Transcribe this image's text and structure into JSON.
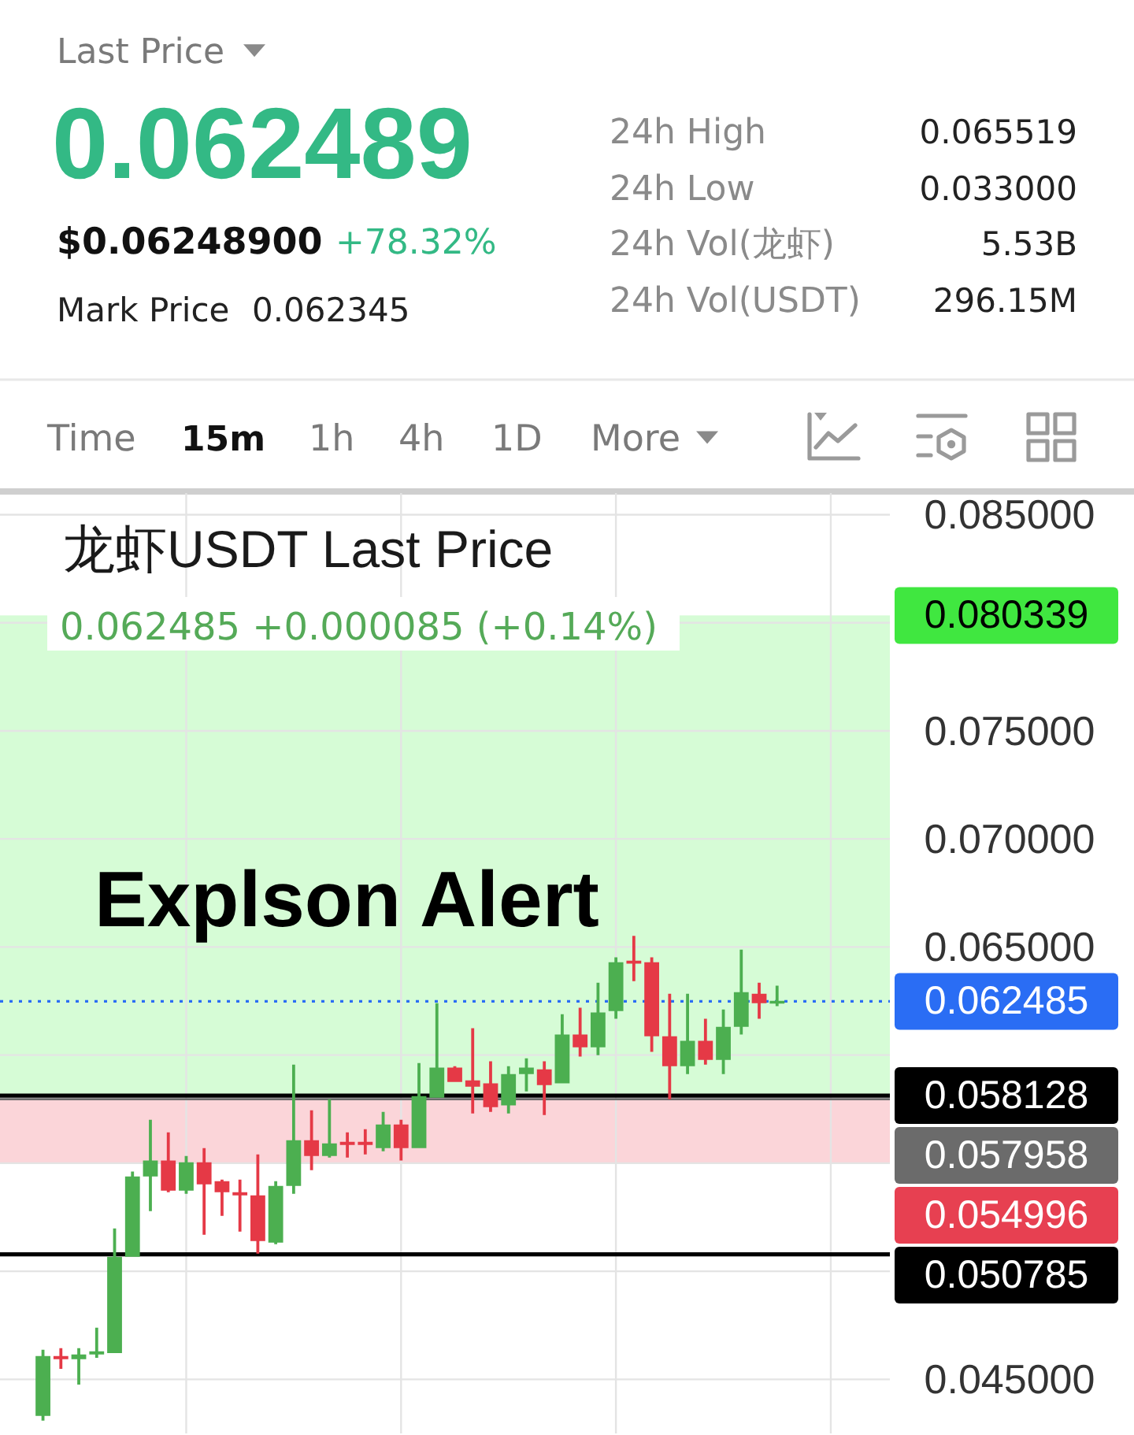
{
  "chart_data": [
    {
      "type": "other",
      "annotations": [
        "Last Price",
        "0.062489",
        "$0.06248900",
        "+78.32%",
        "Mark Price",
        "0.062345",
        "24h High",
        "0.065519",
        "24h Low",
        "0.033000",
        "24h Vol(龙虾)",
        "5.53B",
        "24h Vol(USDT)",
        "296.15M",
        "Time",
        "15m",
        "1h",
        "4h",
        "1D",
        "More"
      ]
    },
    {
      "type": "candlestick",
      "title": "龙虾USDT Last Price",
      "subtitle": "0.062485 +0.000085 (+0.14%)",
      "categories": [
        null,
        null,
        null,
        null,
        null,
        null,
        null,
        null,
        null,
        null,
        null,
        null,
        null,
        null,
        null,
        null,
        null,
        null,
        null,
        null,
        null,
        null,
        null,
        null,
        null,
        null,
        null,
        null,
        null,
        null,
        null,
        null,
        null,
        null,
        null,
        null,
        null,
        null,
        null,
        null,
        null,
        null
      ],
      "ohlc": [
        [
          0.04331,
          0.04637,
          0.04309,
          0.04608
        ],
        [
          0.04608,
          0.04644,
          0.04549,
          0.04593
        ],
        [
          0.04593,
          0.04644,
          0.04476,
          0.04615
        ],
        [
          0.04615,
          0.04739,
          0.046,
          0.0463
        ],
        [
          0.04622,
          0.05198,
          0.04622,
          0.05067
        ],
        [
          0.05067,
          0.05461,
          0.05067,
          0.05439
        ],
        [
          0.05439,
          0.05701,
          0.05278,
          0.05512
        ],
        [
          0.05512,
          0.05643,
          0.05366,
          0.05373
        ],
        [
          0.05373,
          0.05533,
          0.05358,
          0.05504
        ],
        [
          0.05504,
          0.0557,
          0.05169,
          0.05402
        ],
        [
          0.05417,
          0.05424,
          0.05256,
          0.05366
        ],
        [
          0.05366,
          0.05424,
          0.05184,
          0.05351
        ],
        [
          0.05351,
          0.05541,
          0.05082,
          0.0514
        ],
        [
          0.05133,
          0.05417,
          0.05125,
          0.05395
        ],
        [
          0.05395,
          0.05956,
          0.05358,
          0.05606
        ],
        [
          0.05606,
          0.05745,
          0.05468,
          0.05533
        ],
        [
          0.05533,
          0.05796,
          0.05526,
          0.05592
        ],
        [
          0.05599,
          0.05643,
          0.05526,
          0.05584
        ],
        [
          0.05599,
          0.05657,
          0.05541,
          0.05584
        ],
        [
          0.0557,
          0.05737,
          0.05555,
          0.05679
        ],
        [
          0.05679,
          0.05701,
          0.05512,
          0.0557
        ],
        [
          0.0557,
          0.05963,
          0.0557,
          0.0581
        ],
        [
          0.05803,
          0.0624,
          0.05803,
          0.05942
        ],
        [
          0.05942,
          0.05949,
          0.05876,
          0.05876
        ],
        [
          0.05883,
          0.06124,
          0.0573,
          0.05854
        ],
        [
          0.05869,
          0.05971,
          0.05737,
          0.05759
        ],
        [
          0.05767,
          0.05949,
          0.0573,
          0.05912
        ],
        [
          0.05912,
          0.05985,
          0.05832,
          0.05942
        ],
        [
          0.05934,
          0.05971,
          0.05723,
          0.05861
        ],
        [
          0.05869,
          0.06189,
          0.05869,
          0.06095
        ],
        [
          0.06095,
          0.06219,
          0.05993,
          0.06036
        ],
        [
          0.06036,
          0.06335,
          0.06,
          0.06197
        ],
        [
          0.06204,
          0.06452,
          0.06168,
          0.0643
        ],
        [
          0.06437,
          0.06552,
          0.06342,
          0.06423
        ],
        [
          0.0643,
          0.06452,
          0.06015,
          0.06087
        ],
        [
          0.06087,
          0.06284,
          0.05796,
          0.05949
        ],
        [
          0.05949,
          0.06284,
          0.05912,
          0.06066
        ],
        [
          0.06066,
          0.06168,
          0.05956,
          0.05978
        ],
        [
          0.05978,
          0.06211,
          0.05912,
          0.06131
        ],
        [
          0.06131,
          0.06488,
          0.06095,
          0.06291
        ],
        [
          0.06284,
          0.06335,
          0.06168,
          0.0624
        ],
        [
          0.0624,
          0.06321,
          0.06226,
          0.06249
        ]
      ],
      "colors": [
        "#4caf50",
        "#e53946",
        "#4caf50",
        "#4caf50",
        "#4caf50",
        "#4caf50",
        "#4caf50",
        "#e53946",
        "#4caf50",
        "#e53946",
        "#e53946",
        "#e53946",
        "#e53946",
        "#4caf50",
        "#4caf50",
        "#e53946",
        "#4caf50",
        "#e53946",
        "#e53946",
        "#4caf50",
        "#e53946",
        "#4caf50",
        "#4caf50",
        "#e53946",
        "#e53946",
        "#e53946",
        "#4caf50",
        "#4caf50",
        "#e53946",
        "#4caf50",
        "#e53946",
        "#4caf50",
        "#4caf50",
        "#e53946",
        "#e53946",
        "#e53946",
        "#4caf50",
        "#e53946",
        "#4caf50",
        "#4caf50",
        "#e53946",
        "#4caf50"
      ],
      "ylim": [
        0.0425,
        0.086
      ],
      "yticks": [
        {
          "value": 0.045,
          "label": "0.045000"
        },
        {
          "value": 0.05,
          "label": null
        },
        {
          "value": 0.055,
          "label": null
        },
        {
          "value": 0.06,
          "label": null
        },
        {
          "value": 0.065,
          "label": "0.065000"
        },
        {
          "value": 0.07,
          "label": "0.070000"
        },
        {
          "value": 0.075,
          "label": "0.075000"
        },
        {
          "value": 0.08,
          "label": null
        },
        {
          "value": 0.085,
          "label": "0.085000"
        }
      ],
      "grid": true,
      "bands": [
        {
          "axis": "y",
          "from": 0.058128,
          "to": 0.080339,
          "label": "0.080339",
          "color": "#d6fcd6"
        },
        {
          "axis": "y",
          "from": 0.057958,
          "to": 0.054996,
          "label": "0.054996",
          "color": "#fbd5d9"
        }
      ],
      "ref_lines": [
        {
          "axis": "y",
          "value": 0.062485,
          "label": "0.062485",
          "color": "#2a6df4",
          "line_style": "dotted"
        },
        {
          "axis": "y",
          "value": 0.058128,
          "label": "0.058128",
          "color": "#000000",
          "line_style": "solid"
        },
        {
          "axis": "y",
          "value": 0.057958,
          "label": "0.057958",
          "color": "#6b6b6b",
          "line_style": "solid"
        },
        {
          "axis": "y",
          "value": 0.050785,
          "label": "0.050785",
          "color": "#000000",
          "line_style": "solid"
        }
      ],
      "annotations": [
        "Explson Alert"
      ]
    }
  ]
}
